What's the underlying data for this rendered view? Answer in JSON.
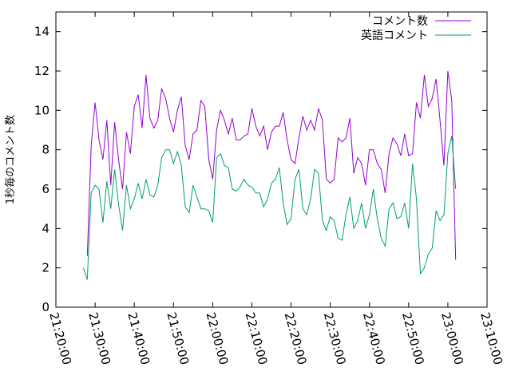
{
  "chart_data": {
    "type": "line",
    "ylabel": "1秒毎のコメント数",
    "xlabel": "",
    "title": "",
    "ylim": [
      0,
      15
    ],
    "y_ticks": [
      0,
      2,
      4,
      6,
      8,
      10,
      12,
      14
    ],
    "x_ticks": [
      "21:20:00",
      "21:30:00",
      "21:40:00",
      "21:50:00",
      "22:00:00",
      "22:10:00",
      "22:20:00",
      "22:30:00",
      "22:40:00",
      "22:50:00",
      "23:00:00",
      "23:10:00"
    ],
    "xlim": [
      "21:20:00",
      "23:10:00"
    ],
    "legend_position": "top-right",
    "grid": false,
    "series": [
      {
        "name": "コメント数",
        "color": "#9400d3",
        "x": [
          "21:28:00",
          "21:29:00",
          "21:30:00",
          "21:31:00",
          "21:32:00",
          "21:33:00",
          "21:34:00",
          "21:35:00",
          "21:36:00",
          "21:37:00",
          "21:38:00",
          "21:39:00",
          "21:40:00",
          "21:41:00",
          "21:42:00",
          "21:43:00",
          "21:44:00",
          "21:45:00",
          "21:46:00",
          "21:47:00",
          "21:48:00",
          "21:49:00",
          "21:50:00",
          "21:51:00",
          "21:52:00",
          "21:53:00",
          "21:54:00",
          "21:55:00",
          "21:56:00",
          "21:57:00",
          "21:58:00",
          "21:59:00",
          "22:00:00",
          "22:01:00",
          "22:02:00",
          "22:03:00",
          "22:04:00",
          "22:05:00",
          "22:06:00",
          "22:07:00",
          "22:08:00",
          "22:09:00",
          "22:10:00",
          "22:11:00",
          "22:12:00",
          "22:13:00",
          "22:14:00",
          "22:15:00",
          "22:16:00",
          "22:17:00",
          "22:18:00",
          "22:19:00",
          "22:20:00",
          "22:21:00",
          "22:22:00",
          "22:23:00",
          "22:24:00",
          "22:25:00",
          "22:26:00",
          "22:27:00",
          "22:28:00",
          "22:29:00",
          "22:30:00",
          "22:31:00",
          "22:32:00",
          "22:33:00",
          "22:34:00",
          "22:35:00",
          "22:36:00",
          "22:37:00",
          "22:38:00",
          "22:39:00",
          "22:40:00",
          "22:41:00",
          "22:42:00",
          "22:43:00",
          "22:44:00",
          "22:45:00",
          "22:46:00",
          "22:47:00",
          "22:48:00",
          "22:49:00",
          "22:50:00",
          "22:51:00",
          "22:52:00",
          "22:53:00",
          "22:54:00",
          "22:55:00",
          "22:56:00",
          "22:57:00",
          "22:58:00",
          "22:59:00",
          "23:00:00",
          "23:01:00",
          "23:02:00"
        ],
        "values": [
          2.6,
          8.2,
          10.4,
          8.5,
          7.5,
          9.5,
          6.2,
          9.4,
          7.5,
          6.0,
          8.9,
          7.8,
          10.2,
          10.8,
          9.1,
          11.8,
          9.6,
          9.1,
          9.5,
          11.1,
          10.6,
          9.6,
          8.9,
          10.0,
          10.7,
          8.2,
          7.5,
          8.8,
          9.0,
          10.5,
          10.2,
          7.5,
          6.5,
          9.0,
          10.0,
          9.5,
          8.8,
          9.6,
          8.5,
          8.5,
          8.7,
          8.8,
          10.1,
          9.2,
          8.7,
          9.2,
          8.0,
          8.9,
          9.2,
          9.2,
          9.9,
          8.5,
          7.5,
          7.3,
          8.6,
          9.7,
          9.0,
          9.5,
          9.0,
          10.1,
          9.5,
          6.5,
          6.3,
          6.5,
          8.6,
          8.4,
          8.6,
          9.6,
          6.8,
          7.6,
          7.3,
          6.2,
          8.0,
          8.0,
          7.3,
          7.0,
          5.8,
          7.8,
          8.6,
          8.3,
          7.7,
          8.8,
          7.7,
          7.8,
          10.4,
          9.6,
          11.8,
          10.2,
          10.6,
          11.6,
          9.5,
          7.2,
          12.0,
          10.5,
          2.4
        ]
      },
      {
        "name": "英語コメント",
        "color": "#009e73",
        "x": [
          "21:27:00",
          "21:28:00",
          "21:29:00",
          "21:30:00",
          "21:31:00",
          "21:32:00",
          "21:33:00",
          "21:34:00",
          "21:35:00",
          "21:36:00",
          "21:37:00",
          "21:38:00",
          "21:39:00",
          "21:40:00",
          "21:41:00",
          "21:42:00",
          "21:43:00",
          "21:44:00",
          "21:45:00",
          "21:46:00",
          "21:47:00",
          "21:48:00",
          "21:49:00",
          "21:50:00",
          "21:51:00",
          "21:52:00",
          "21:53:00",
          "21:54:00",
          "21:55:00",
          "21:56:00",
          "21:57:00",
          "21:58:00",
          "21:59:00",
          "22:00:00",
          "22:01:00",
          "22:02:00",
          "22:03:00",
          "22:04:00",
          "22:05:00",
          "22:06:00",
          "22:07:00",
          "22:08:00",
          "22:09:00",
          "22:10:00",
          "22:11:00",
          "22:12:00",
          "22:13:00",
          "22:14:00",
          "22:15:00",
          "22:16:00",
          "22:17:00",
          "22:18:00",
          "22:19:00",
          "22:20:00",
          "22:21:00",
          "22:22:00",
          "22:23:00",
          "22:24:00",
          "22:25:00",
          "22:26:00",
          "22:27:00",
          "22:28:00",
          "22:29:00",
          "22:30:00",
          "22:31:00",
          "22:32:00",
          "22:33:00",
          "22:34:00",
          "22:35:00",
          "22:36:00",
          "22:37:00",
          "22:38:00",
          "22:39:00",
          "22:40:00",
          "22:41:00",
          "22:42:00",
          "22:43:00",
          "22:44:00",
          "22:45:00",
          "22:46:00",
          "22:47:00",
          "22:48:00",
          "22:49:00",
          "22:50:00",
          "22:51:00",
          "22:52:00",
          "22:53:00",
          "22:54:00",
          "22:55:00",
          "22:56:00",
          "22:57:00",
          "22:58:00",
          "22:59:00",
          "23:00:00",
          "23:01:00",
          "23:02:00"
        ],
        "values": [
          2.0,
          1.4,
          5.8,
          6.2,
          6.0,
          4.3,
          6.4,
          5.0,
          7.0,
          5.2,
          3.9,
          6.2,
          5.0,
          5.5,
          6.3,
          5.5,
          6.5,
          5.7,
          5.6,
          6.2,
          7.6,
          8.0,
          8.0,
          7.3,
          7.9,
          7.2,
          5.1,
          4.8,
          6.2,
          5.6,
          5.0,
          5.0,
          4.9,
          4.3,
          7.6,
          7.8,
          7.2,
          7.1,
          6.0,
          5.9,
          6.1,
          6.5,
          6.2,
          6.1,
          5.8,
          5.8,
          5.1,
          5.5,
          6.3,
          6.5,
          7.1,
          5.3,
          4.2,
          4.5,
          6.5,
          7.0,
          5.0,
          4.7,
          5.5,
          7.0,
          6.8,
          4.4,
          3.9,
          4.6,
          4.4,
          3.5,
          3.4,
          4.7,
          5.6,
          4.0,
          4.4,
          5.3,
          4.0,
          4.7,
          6.0,
          4.5,
          3.5,
          3.1,
          5.0,
          5.3,
          4.5,
          4.6,
          5.3,
          4.0,
          7.3,
          5.5,
          1.7,
          2.0,
          2.7,
          3.0,
          4.9,
          4.4,
          4.7,
          7.8,
          8.7,
          6.0
        ]
      }
    ]
  }
}
